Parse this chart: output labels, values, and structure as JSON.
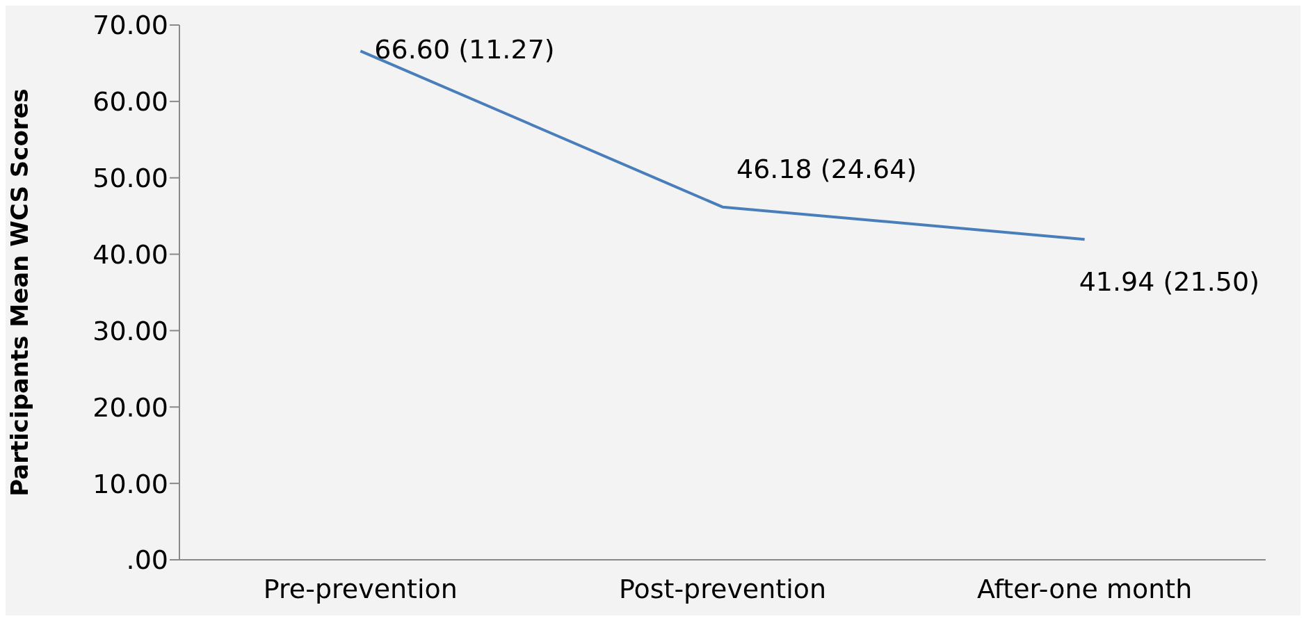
{
  "chart_data": {
    "type": "line",
    "ylabel": "Participants Mean WCS  Scores",
    "categories": [
      "Pre-prevention",
      "Post-prevention",
      "After-one month"
    ],
    "series": [
      {
        "color": "#4a7ebb",
        "values": [
          66.6,
          46.18,
          41.94
        ],
        "value_labels": [
          "66.60 (11.27)",
          "46.18 (24.64)",
          "41.94 (21.50)"
        ]
      }
    ],
    "ylim": [
      0,
      70
    ],
    "yticks": [
      {
        "value": 0,
        "label": ".00"
      },
      {
        "value": 10,
        "label": "10.00"
      },
      {
        "value": 20,
        "label": "20.00"
      },
      {
        "value": 30,
        "label": "30.00"
      },
      {
        "value": 40,
        "label": "40.00"
      },
      {
        "value": 50,
        "label": "50.00"
      },
      {
        "value": 60,
        "label": "60.00"
      },
      {
        "value": 70,
        "label": "70.00"
      }
    ],
    "grid": false,
    "legend": false,
    "marker": "none",
    "line_style": "solid"
  }
}
